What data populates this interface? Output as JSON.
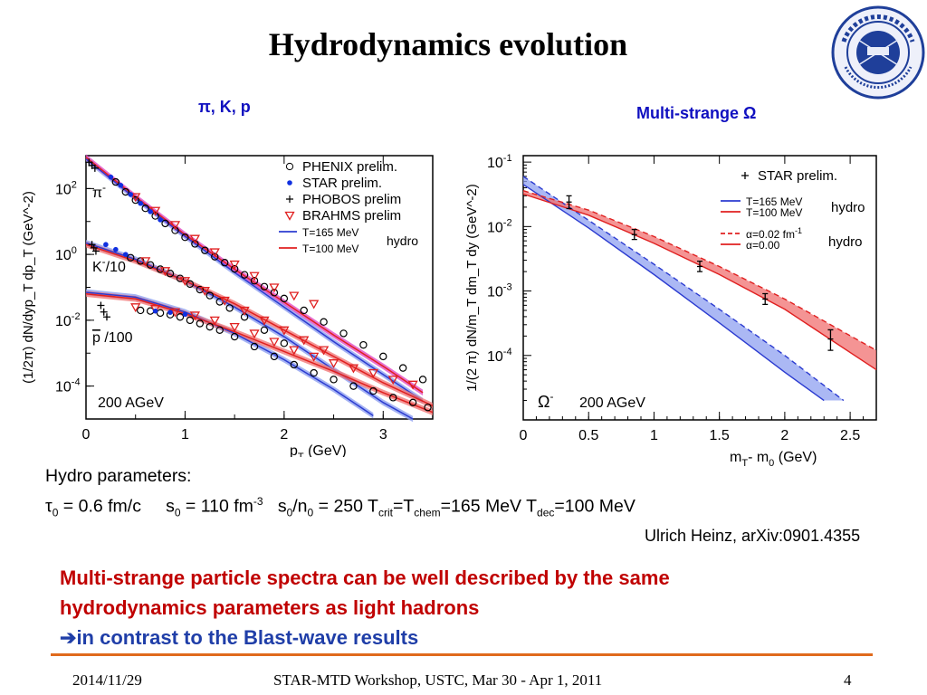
{
  "slide": {
    "title": "Hydrodynamics evolution",
    "left_panel_title": "π, K, p",
    "right_panel_title": "Multi-strange Ω",
    "logo_text": "中国科学技术大学 · University of Science and Technology of China · 1958",
    "params_heading": "Hydro parameters:",
    "params": {
      "tau0_sym": "τ",
      "tau0_sub": "0",
      "tau0_val": " = 0.6 fm/c",
      "s0_sym": "s",
      "s0_sub": "0",
      "s0_val": " = 110 fm",
      "s0_exp": "-3",
      "ratio_a": "s",
      "ratio_sub1": "0",
      "ratio_b": "/n",
      "ratio_sub2": "0",
      "ratio_val": " = 250 T",
      "tcrit_sub": "crit",
      "tcrit_eq": "=T",
      "tchem_sub": "chem",
      "tchem_val": "=165 MeV T",
      "tdec_sub": "dec",
      "tdec_val": "=100 MeV"
    },
    "reference": "Ulrich Heinz, arXiv:0901.4355",
    "conclusion_line1": "Multi-strange particle spectra can be well described by the same",
    "conclusion_line2": "hydrodynamics parameters as light hadrons",
    "conclusion_arrow": "➔",
    "conclusion_line3": "in contrast to the Blast-wave results",
    "footer_date": "2014/11/29",
    "footer_event": "STAR-MTD Workshop, USTC, Mar 30 - Apr 1, 2011",
    "footer_page": "4"
  },
  "colors": {
    "hydro165": "#2b3bd0",
    "hydro100": "#e02020",
    "band165": "#8fa0f0",
    "band100": "#f07070",
    "band_pion": "#e040c0",
    "conclusion": "#c00000",
    "accent_rule": "#e06a1c",
    "panel_title": "#1010c0"
  },
  "chart_data": [
    {
      "type": "scatter",
      "xlabel": "p",
      "xlabel_sub": "T",
      "xlabel_unit": " (GeV)",
      "ylabel": "(1/2π) dN/dyp_T dp_T (GeV^-2)",
      "x_ticks": [
        "0",
        "1",
        "2",
        "3"
      ],
      "y_ticks": [
        {
          "base": "10",
          "exp": "2"
        },
        {
          "base": "10",
          "exp": "0"
        },
        {
          "base": "10",
          "exp": "-2"
        },
        {
          "base": "10",
          "exp": "-4"
        }
      ],
      "xlim": [
        0,
        3.5
      ],
      "ylim_log10": [
        -5,
        3
      ],
      "annotation_energy": "200 AGeV",
      "particle_labels": [
        {
          "text": "π",
          "sup": "-",
          "sub": "",
          "after": ""
        },
        {
          "text": "K",
          "sup": "-",
          "sub": "",
          "after": "/10"
        },
        {
          "text": "p",
          "sup": "",
          "sub": "",
          "after": " /100",
          "overline": true
        }
      ],
      "legend": [
        {
          "marker": "circle",
          "label": "PHENIX prelim."
        },
        {
          "marker": "star",
          "label": "STAR prelim."
        },
        {
          "marker": "plus",
          "label": "PHOBOS prelim"
        },
        {
          "marker": "triangle-down",
          "label": "BRAHMS prelim"
        },
        {
          "marker": "line-blue",
          "label": "T=165 MeV"
        },
        {
          "marker": "line-red",
          "label": "T=100 MeV"
        }
      ],
      "legend_hydro": "hydro",
      "series": [
        {
          "name": "π-",
          "phenix": [
            [
              0.3,
              2.2
            ],
            [
              0.4,
              1.9
            ],
            [
              0.5,
              1.65
            ],
            [
              0.6,
              1.4
            ],
            [
              0.7,
              1.17
            ],
            [
              0.8,
              0.94
            ],
            [
              0.9,
              0.73
            ],
            [
              1.0,
              0.52
            ],
            [
              1.1,
              0.32
            ],
            [
              1.2,
              0.12
            ],
            [
              1.3,
              -0.07
            ],
            [
              1.4,
              -0.25
            ],
            [
              1.5,
              -0.44
            ],
            [
              1.6,
              -0.62
            ],
            [
              1.7,
              -0.8
            ],
            [
              1.8,
              -0.98
            ],
            [
              1.9,
              -1.16
            ],
            [
              2.0,
              -1.34
            ],
            [
              2.2,
              -1.7
            ],
            [
              2.4,
              -2.05
            ],
            [
              2.6,
              -2.4
            ],
            [
              2.8,
              -2.75
            ],
            [
              3.0,
              -3.1
            ],
            [
              3.2,
              -3.45
            ],
            [
              3.4,
              -3.8
            ]
          ],
          "star": [
            [
              0.25,
              2.35
            ],
            [
              0.35,
              2.1
            ],
            [
              0.45,
              1.82
            ],
            [
              0.55,
              1.55
            ],
            [
              0.65,
              1.3
            ],
            [
              0.75,
              1.05
            ]
          ],
          "phobos": [
            [
              0.03,
              2.8
            ],
            [
              0.06,
              2.7
            ],
            [
              0.09,
              2.62
            ]
          ],
          "brahms": [
            [
              0.5,
              1.75
            ],
            [
              0.7,
              1.33
            ],
            [
              0.9,
              0.9
            ],
            [
              1.1,
              0.48
            ],
            [
              1.3,
              0.07
            ],
            [
              1.5,
              -0.3
            ],
            [
              1.7,
              -0.65
            ],
            [
              1.9,
              -1.0
            ],
            [
              2.1,
              -1.25
            ],
            [
              2.3,
              -1.5
            ]
          ],
          "hydro165": [
            [
              0,
              2.9
            ],
            [
              0.5,
              1.7
            ],
            [
              1.0,
              0.55
            ],
            [
              1.5,
              -0.55
            ],
            [
              2.0,
              -1.6
            ],
            [
              2.5,
              -2.65
            ],
            [
              3.0,
              -3.65
            ],
            [
              3.4,
              -4.45
            ]
          ],
          "hydro100": [
            [
              0,
              2.95
            ],
            [
              0.5,
              1.75
            ],
            [
              1.0,
              0.6
            ],
            [
              1.5,
              -0.45
            ],
            [
              2.0,
              -1.45
            ],
            [
              2.5,
              -2.45
            ],
            [
              3.0,
              -3.4
            ],
            [
              3.4,
              -4.2
            ]
          ]
        },
        {
          "name": "K-/10",
          "phenix": [
            [
              0.45,
              -0.1
            ],
            [
              0.55,
              -0.2
            ],
            [
              0.65,
              -0.32
            ],
            [
              0.75,
              -0.45
            ],
            [
              0.85,
              -0.58
            ],
            [
              0.95,
              -0.73
            ],
            [
              1.05,
              -0.9
            ],
            [
              1.15,
              -1.07
            ],
            [
              1.25,
              -1.25
            ],
            [
              1.35,
              -1.44
            ],
            [
              1.45,
              -1.63
            ],
            [
              1.6,
              -1.9
            ],
            [
              1.8,
              -2.3
            ],
            [
              2.0,
              -2.7
            ]
          ],
          "star": [
            [
              0.2,
              0.3
            ],
            [
              0.3,
              0.15
            ],
            [
              0.4,
              0.0
            ]
          ],
          "phobos": [
            [
              0.06,
              0.3
            ],
            [
              0.08,
              0.2
            ],
            [
              0.1,
              0.1
            ]
          ],
          "brahms": [
            [
              0.6,
              -0.2
            ],
            [
              0.8,
              -0.5
            ],
            [
              1.0,
              -0.8
            ],
            [
              1.2,
              -1.1
            ],
            [
              1.4,
              -1.4
            ],
            [
              1.6,
              -1.7
            ],
            [
              1.8,
              -2.0
            ],
            [
              2.0,
              -2.3
            ],
            [
              2.2,
              -2.6
            ],
            [
              2.4,
              -2.9
            ]
          ],
          "hydro165": [
            [
              0,
              0.35
            ],
            [
              0.5,
              -0.15
            ],
            [
              1.0,
              -0.8
            ],
            [
              1.5,
              -1.6
            ],
            [
              2.0,
              -2.5
            ],
            [
              2.5,
              -3.5
            ],
            [
              3.0,
              -4.5
            ],
            [
              3.3,
              -5.0
            ]
          ],
          "hydro100": [
            [
              0,
              0.3
            ],
            [
              0.5,
              -0.2
            ],
            [
              1.0,
              -0.8
            ],
            [
              1.5,
              -1.5
            ],
            [
              2.0,
              -2.3
            ],
            [
              2.5,
              -3.1
            ],
            [
              3.0,
              -3.9
            ],
            [
              3.5,
              -4.6
            ]
          ]
        },
        {
          "name": "p̄/100",
          "phenix": [
            [
              0.55,
              -1.7
            ],
            [
              0.65,
              -1.72
            ],
            [
              0.75,
              -1.78
            ],
            [
              0.85,
              -1.83
            ],
            [
              0.95,
              -1.9
            ],
            [
              1.05,
              -2.0
            ],
            [
              1.15,
              -2.1
            ],
            [
              1.25,
              -2.2
            ],
            [
              1.35,
              -2.3
            ],
            [
              1.5,
              -2.5
            ],
            [
              1.7,
              -2.8
            ],
            [
              1.9,
              -3.1
            ],
            [
              2.1,
              -3.35
            ],
            [
              2.3,
              -3.6
            ],
            [
              2.5,
              -3.8
            ],
            [
              2.7,
              -4.0
            ],
            [
              2.9,
              -4.15
            ],
            [
              3.1,
              -4.35
            ],
            [
              3.3,
              -4.5
            ],
            [
              3.45,
              -4.65
            ]
          ],
          "star": [
            [
              0.7,
              -1.72
            ],
            [
              0.85,
              -1.76
            ],
            [
              1.0,
              -1.82
            ]
          ],
          "phobos": [
            [
              0.15,
              -1.55
            ],
            [
              0.18,
              -1.75
            ],
            [
              0.21,
              -1.9
            ]
          ],
          "brahms": [
            [
              0.5,
              -1.6
            ],
            [
              0.7,
              -1.65
            ],
            [
              0.9,
              -1.75
            ],
            [
              1.1,
              -1.85
            ],
            [
              1.3,
              -2.0
            ],
            [
              1.5,
              -2.2
            ],
            [
              1.7,
              -2.4
            ],
            [
              1.9,
              -2.65
            ],
            [
              2.1,
              -2.9
            ],
            [
              2.3,
              -3.1
            ],
            [
              2.5,
              -3.3
            ],
            [
              2.7,
              -3.45
            ],
            [
              2.9,
              -3.6
            ],
            [
              3.1,
              -3.8
            ],
            [
              3.3,
              -3.95
            ]
          ],
          "hydro165": [
            [
              0,
              -1.15
            ],
            [
              0.5,
              -1.3
            ],
            [
              1.0,
              -1.75
            ],
            [
              1.5,
              -2.4
            ],
            [
              2.0,
              -3.2
            ],
            [
              2.5,
              -4.1
            ],
            [
              2.9,
              -4.9
            ]
          ],
          "hydro100": [
            [
              0,
              -1.2
            ],
            [
              0.5,
              -1.35
            ],
            [
              1.0,
              -1.8
            ],
            [
              1.5,
              -2.35
            ],
            [
              2.0,
              -2.95
            ],
            [
              2.5,
              -3.55
            ],
            [
              3.0,
              -4.2
            ],
            [
              3.5,
              -4.8
            ]
          ]
        }
      ]
    },
    {
      "type": "scatter",
      "xlabel": "m",
      "xlabel_sub1": "T",
      "xlabel_mid": "- m",
      "xlabel_sub2": "0",
      "xlabel_unit": " (GeV)",
      "ylabel": "1/(2 π) dN/m_T dm_T dy (GeV^-2)",
      "x_ticks": [
        "0",
        "0.5",
        "1",
        "1.5",
        "2",
        "2.5"
      ],
      "y_ticks": [
        {
          "base": "10",
          "exp": "-1"
        },
        {
          "base": "10",
          "exp": "-2"
        },
        {
          "base": "10",
          "exp": "-3"
        },
        {
          "base": "10",
          "exp": "-4"
        }
      ],
      "xlim": [
        0,
        2.7
      ],
      "ylim_log10": [
        -5,
        -0.9
      ],
      "annotation_particle": "Ω",
      "annotation_particle_sup": "-",
      "annotation_energy": "200 AGeV",
      "legend_star": "STAR prelim.",
      "legend_lines": [
        {
          "style": "solid-blue",
          "label": "T=165 MeV"
        },
        {
          "style": "solid-red",
          "label": "T=100 MeV"
        },
        {
          "style": "dashed-red",
          "label": "α=0.02 fm",
          "sup": "-1"
        },
        {
          "style": "solid-red",
          "label": "α=0.00"
        }
      ],
      "legend_hydro_1": "hydro",
      "legend_hydro_2": "hydro",
      "star_points": [
        {
          "x": 0.35,
          "y": 0.024,
          "err_lo": 0.019,
          "err_hi": 0.03
        },
        {
          "x": 0.85,
          "y": 0.0075,
          "err_lo": 0.0063,
          "err_hi": 0.009
        },
        {
          "x": 1.35,
          "y": 0.0024,
          "err_lo": 0.002,
          "err_hi": 0.0029
        },
        {
          "x": 1.85,
          "y": 0.00075,
          "err_lo": 0.00062,
          "err_hi": 0.00091
        },
        {
          "x": 2.35,
          "y": 0.00018,
          "err_lo": 0.00012,
          "err_hi": 0.00025
        }
      ],
      "hydro165_lower": [
        [
          0,
          0.045
        ],
        [
          0.5,
          0.0095
        ],
        [
          1.0,
          0.0018
        ],
        [
          1.5,
          0.00032
        ],
        [
          2.0,
          5.5e-05
        ],
        [
          2.3,
          2e-05
        ]
      ],
      "hydro165_upper": [
        [
          0,
          0.06
        ],
        [
          0.5,
          0.0125
        ],
        [
          1.0,
          0.0026
        ],
        [
          1.5,
          0.00052
        ],
        [
          2.0,
          0.0001
        ],
        [
          2.45,
          2e-05
        ]
      ],
      "hydro100_lower": [
        [
          0,
          0.032
        ],
        [
          0.5,
          0.015
        ],
        [
          1.0,
          0.0055
        ],
        [
          1.5,
          0.0018
        ],
        [
          2.0,
          0.00052
        ],
        [
          2.7,
          6e-05
        ]
      ],
      "hydro100_upper": [
        [
          0,
          0.036
        ],
        [
          0.5,
          0.018
        ],
        [
          1.0,
          0.007
        ],
        [
          1.5,
          0.0024
        ],
        [
          2.0,
          0.00075
        ],
        [
          2.7,
          0.00012
        ]
      ]
    }
  ]
}
